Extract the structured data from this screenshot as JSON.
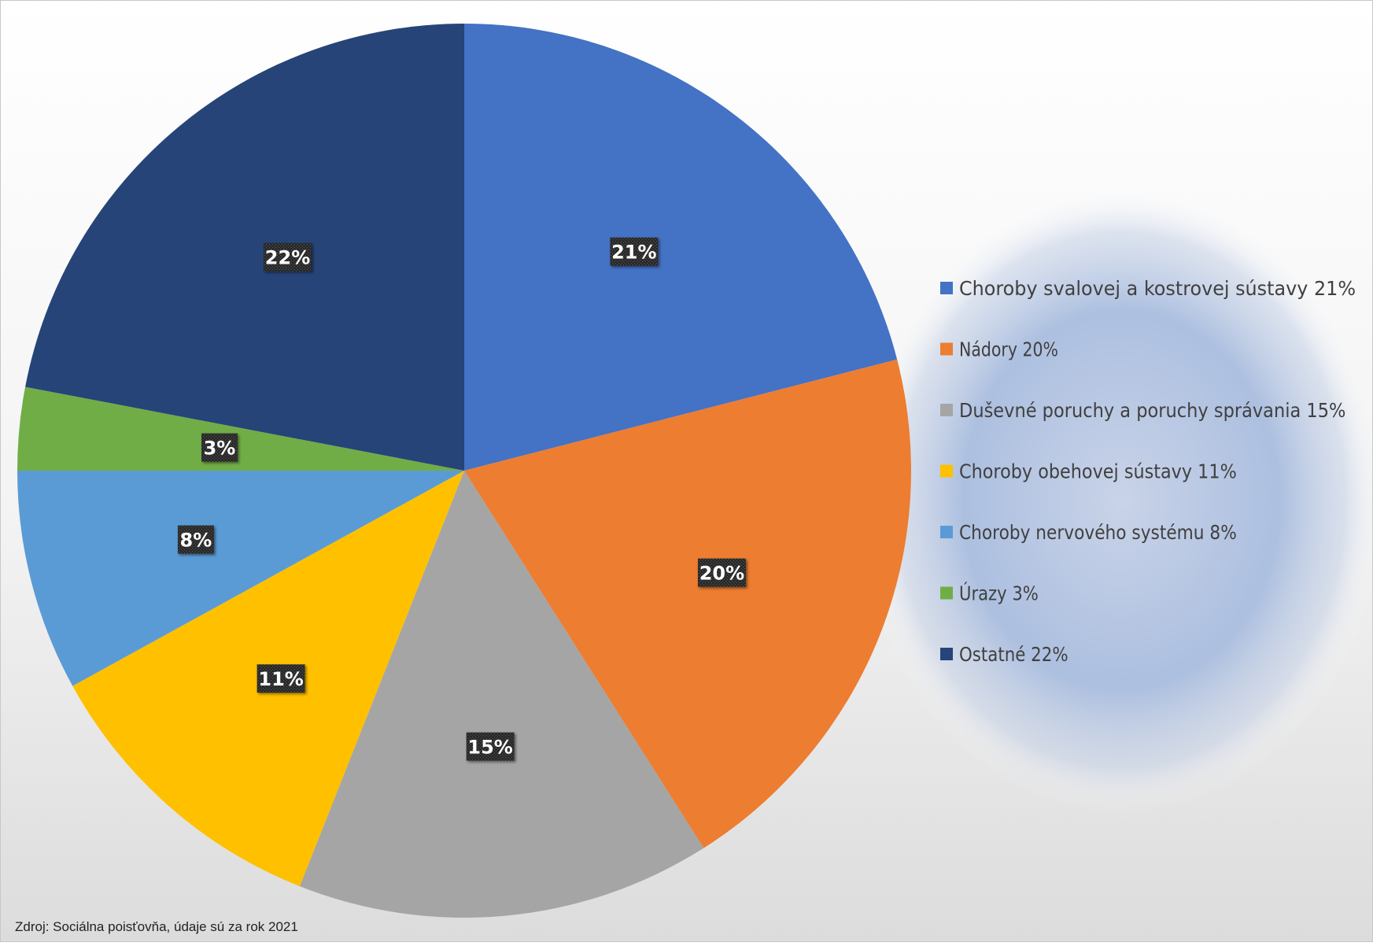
{
  "chart_data": {
    "type": "pie",
    "start_angle_deg": 0,
    "direction": "clockwise",
    "slices": [
      {
        "label": "Choroby svalovej a kostrovej sústavy",
        "value": 21,
        "data_label": "21%",
        "legend": "Choroby svalovej a kostrovej sústavy 21%",
        "color": "#4472C4"
      },
      {
        "label": "Nádory",
        "value": 20,
        "data_label": "20%",
        "legend": "Nádory 20%",
        "color": "#ED7D31"
      },
      {
        "label": "Duševné poruchy a poruchy správania",
        "value": 15,
        "data_label": "15%",
        "legend": "Duševné poruchy a poruchy správania 15%",
        "color": "#A5A5A5"
      },
      {
        "label": "Choroby obehovej sústavy",
        "value": 11,
        "data_label": "11%",
        "legend": "Choroby obehovej sústavy 11%",
        "color": "#FFC000"
      },
      {
        "label": "Choroby nervového systému",
        "value": 8,
        "data_label": "8%",
        "legend": "Choroby nervového systému 8%",
        "color": "#5B9BD5"
      },
      {
        "label": "Úrazy",
        "value": 3,
        "data_label": "3%",
        "legend": "Úrazy 3%",
        "color": "#70AD47"
      },
      {
        "label": "Ostatné",
        "value": 22,
        "data_label": "22%",
        "legend": "Ostatné 22%",
        "color": "#264478"
      }
    ],
    "legend_position": "right",
    "data_label_style": "white bold text on dark patterned box"
  },
  "footer": {
    "source": "Zdroj: Sociálna poisťovňa, údaje sú za rok 2021"
  }
}
